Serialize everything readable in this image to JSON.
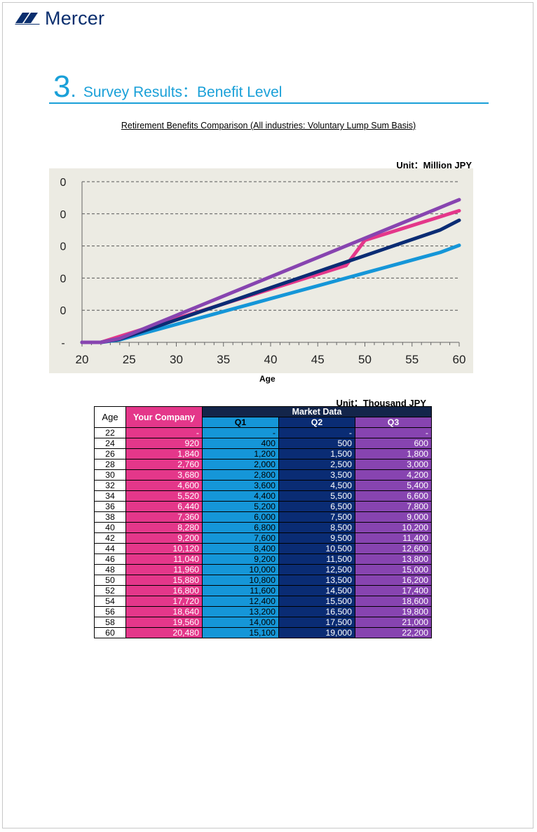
{
  "brand": {
    "name": "Mercer",
    "color": "#0a2e6e"
  },
  "section": {
    "number": "3",
    "dot": ".",
    "title": "Survey Results：Benefit Level"
  },
  "chart_data": {
    "type": "line",
    "title": "Retirement Benefits Comparison (All industries: Voluntary Lump Sum Basis)",
    "unit": "Unit：Million JPY",
    "xlabel": "Age",
    "ylabel": "",
    "x_ticks": [
      "20",
      "25",
      "30",
      "35",
      "40",
      "45",
      "50",
      "55",
      "60"
    ],
    "y_ticks": [
      "-",
      "0",
      "0",
      "0",
      "0",
      "0"
    ],
    "xlim": [
      20,
      60
    ],
    "ylim": [
      0,
      25000
    ],
    "grid": "horizontal dashed",
    "x": [
      20,
      22,
      24,
      26,
      28,
      30,
      32,
      34,
      36,
      38,
      40,
      42,
      44,
      46,
      48,
      50,
      52,
      54,
      56,
      58,
      60
    ],
    "series": [
      {
        "key": "you",
        "color": "#e4378a",
        "values": [
          0,
          0,
          920,
          1840,
          2760,
          3680,
          4600,
          5520,
          6440,
          7360,
          8280,
          9200,
          10120,
          11040,
          11960,
          15880,
          16800,
          17720,
          18640,
          19560,
          20480
        ]
      },
      {
        "key": "q1",
        "color": "#1596d8",
        "values": [
          0,
          0,
          400,
          1200,
          2000,
          2800,
          3600,
          4400,
          5200,
          6000,
          6800,
          7600,
          8400,
          9200,
          10000,
          10800,
          11600,
          12400,
          13200,
          14000,
          15100
        ]
      },
      {
        "key": "q2",
        "color": "#0a2c74",
        "values": [
          0,
          0,
          500,
          1500,
          2500,
          3500,
          4500,
          5500,
          6500,
          7500,
          8500,
          9500,
          10500,
          11500,
          12500,
          13500,
          14500,
          15500,
          16500,
          17500,
          19000
        ]
      },
      {
        "key": "q3",
        "color": "#8744b0",
        "values": [
          0,
          0,
          600,
          1800,
          3000,
          4200,
          5400,
          6600,
          7800,
          9000,
          10200,
          11400,
          12600,
          13800,
          15000,
          16200,
          17400,
          18600,
          19800,
          21000,
          22200
        ]
      }
    ]
  },
  "table": {
    "unit": "Unit：Thousand JPY",
    "headers": {
      "age": "Age",
      "you": "Your Company",
      "market": "Market Data",
      "q1": "Q1",
      "q2": "Q2",
      "q3": "Q3"
    },
    "rows": [
      [
        "22",
        "-",
        "-",
        "-",
        "-"
      ],
      [
        "24",
        "920",
        "400",
        "500",
        "600"
      ],
      [
        "26",
        "1,840",
        "1,200",
        "1,500",
        "1,800"
      ],
      [
        "28",
        "2,760",
        "2,000",
        "2,500",
        "3,000"
      ],
      [
        "30",
        "3,680",
        "2,800",
        "3,500",
        "4,200"
      ],
      [
        "32",
        "4,600",
        "3,600",
        "4,500",
        "5,400"
      ],
      [
        "34",
        "5,520",
        "4,400",
        "5,500",
        "6,600"
      ],
      [
        "36",
        "6,440",
        "5,200",
        "6,500",
        "7,800"
      ],
      [
        "38",
        "7,360",
        "6,000",
        "7,500",
        "9,000"
      ],
      [
        "40",
        "8,280",
        "6,800",
        "8,500",
        "10,200"
      ],
      [
        "42",
        "9,200",
        "7,600",
        "9,500",
        "11,400"
      ],
      [
        "44",
        "10,120",
        "8,400",
        "10,500",
        "12,600"
      ],
      [
        "46",
        "11,040",
        "9,200",
        "11,500",
        "13,800"
      ],
      [
        "48",
        "11,960",
        "10,000",
        "12,500",
        "15,000"
      ],
      [
        "50",
        "15,880",
        "10,800",
        "13,500",
        "16,200"
      ],
      [
        "52",
        "16,800",
        "11,600",
        "14,500",
        "17,400"
      ],
      [
        "54",
        "17,720",
        "12,400",
        "15,500",
        "18,600"
      ],
      [
        "56",
        "18,640",
        "13,200",
        "16,500",
        "19,800"
      ],
      [
        "58",
        "19,560",
        "14,000",
        "17,500",
        "21,000"
      ],
      [
        "60",
        "20,480",
        "15,100",
        "19,000",
        "22,200"
      ]
    ]
  }
}
